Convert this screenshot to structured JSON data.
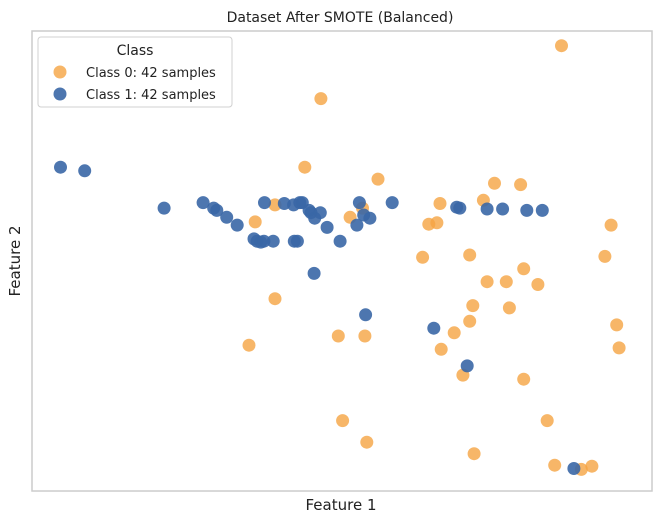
{
  "chart_data": {
    "type": "scatter",
    "title": "Dataset After SMOTE (Balanced)",
    "xlabel": "Feature 1",
    "ylabel": "Feature 2",
    "xlim": [
      0,
      100
    ],
    "ylim": [
      0,
      100
    ],
    "grid": false,
    "legend": {
      "title": "Class",
      "placement": "top-left"
    },
    "series": [
      {
        "name": "Class 0: 42 samples",
        "color": "#f5a442",
        "points": [
          [
            85.4,
            96.8
          ],
          [
            46.6,
            85.3
          ],
          [
            44.0,
            70.4
          ],
          [
            55.8,
            67.8
          ],
          [
            74.6,
            66.9
          ],
          [
            78.8,
            66.6
          ],
          [
            72.8,
            63.2
          ],
          [
            65.8,
            62.5
          ],
          [
            53.3,
            61.5
          ],
          [
            51.3,
            59.5
          ],
          [
            36.0,
            58.5
          ],
          [
            64.0,
            58.0
          ],
          [
            65.3,
            58.3
          ],
          [
            93.4,
            57.8
          ],
          [
            39.2,
            62.2
          ],
          [
            63.0,
            50.8
          ],
          [
            70.6,
            51.3
          ],
          [
            92.4,
            51.0
          ],
          [
            79.3,
            48.3
          ],
          [
            73.4,
            45.5
          ],
          [
            76.5,
            45.5
          ],
          [
            81.6,
            44.9
          ],
          [
            39.2,
            41.8
          ],
          [
            71.1,
            40.3
          ],
          [
            77.0,
            39.8
          ],
          [
            70.6,
            36.9
          ],
          [
            94.3,
            36.1
          ],
          [
            68.1,
            34.4
          ],
          [
            49.4,
            33.7
          ],
          [
            53.7,
            33.7
          ],
          [
            66.0,
            30.8
          ],
          [
            35.0,
            31.7
          ],
          [
            94.7,
            31.1
          ],
          [
            69.5,
            25.2
          ],
          [
            79.3,
            24.3
          ],
          [
            50.1,
            15.3
          ],
          [
            83.1,
            15.3
          ],
          [
            54.0,
            10.6
          ],
          [
            71.3,
            8.1
          ],
          [
            84.3,
            5.6
          ],
          [
            88.6,
            4.7
          ],
          [
            90.3,
            5.4
          ]
        ]
      },
      {
        "name": "Class 1: 42 samples",
        "color": "#3a67a6",
        "points": [
          [
            4.6,
            70.4
          ],
          [
            8.5,
            69.6
          ],
          [
            21.3,
            61.5
          ],
          [
            27.6,
            62.7
          ],
          [
            29.3,
            61.5
          ],
          [
            29.8,
            61.0
          ],
          [
            31.4,
            59.5
          ],
          [
            33.1,
            57.8
          ],
          [
            37.5,
            62.7
          ],
          [
            40.7,
            62.5
          ],
          [
            43.2,
            62.7
          ],
          [
            43.6,
            62.7
          ],
          [
            42.2,
            62.2
          ],
          [
            44.7,
            61.0
          ],
          [
            45.0,
            60.5
          ],
          [
            45.6,
            59.3
          ],
          [
            47.6,
            57.3
          ],
          [
            49.7,
            54.3
          ],
          [
            52.8,
            62.7
          ],
          [
            53.5,
            60.0
          ],
          [
            54.5,
            59.3
          ],
          [
            52.4,
            57.8
          ],
          [
            58.1,
            62.7
          ],
          [
            68.5,
            61.7
          ],
          [
            69.0,
            61.5
          ],
          [
            73.4,
            61.3
          ],
          [
            75.9,
            61.3
          ],
          [
            79.8,
            61.0
          ],
          [
            82.3,
            61.0
          ],
          [
            35.8,
            54.8
          ],
          [
            36.3,
            54.3
          ],
          [
            36.9,
            54.1
          ],
          [
            38.9,
            54.3
          ],
          [
            42.3,
            54.3
          ],
          [
            42.8,
            54.3
          ],
          [
            45.5,
            47.3
          ],
          [
            53.8,
            38.3
          ],
          [
            64.8,
            35.4
          ],
          [
            70.2,
            27.2
          ],
          [
            87.4,
            4.9
          ],
          [
            37.4,
            54.3
          ],
          [
            46.5,
            60.5
          ]
        ]
      }
    ]
  }
}
